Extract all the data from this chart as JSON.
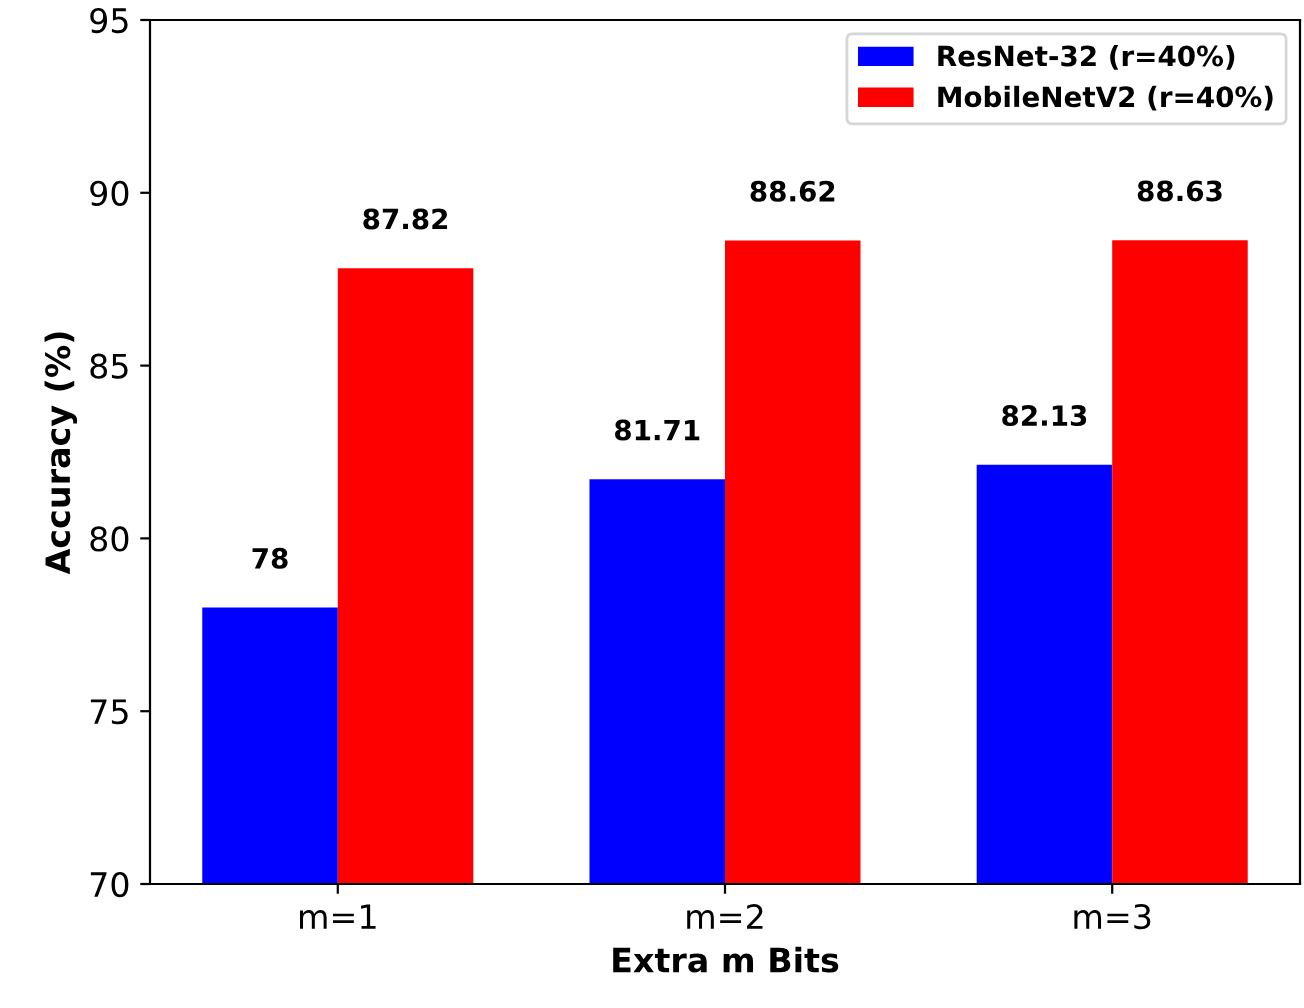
{
  "chart_data": {
    "type": "bar",
    "xlabel": "Extra m Bits",
    "ylabel": "Accuracy (%)",
    "categories": [
      "m=1",
      "m=2",
      "m=3"
    ],
    "series": [
      {
        "name": "ResNet-32 (r=40%)",
        "color": "#0000ff",
        "values": [
          78,
          81.71,
          82.13
        ]
      },
      {
        "name": "MobileNetV2 (r=40%)",
        "color": "#ff0000",
        "values": [
          87.82,
          88.62,
          88.63
        ]
      }
    ],
    "ylim": [
      70,
      95
    ],
    "yticks": [
      70,
      75,
      80,
      85,
      90,
      95
    ],
    "data_labels": true,
    "legend": "top right",
    "grid": false
  }
}
